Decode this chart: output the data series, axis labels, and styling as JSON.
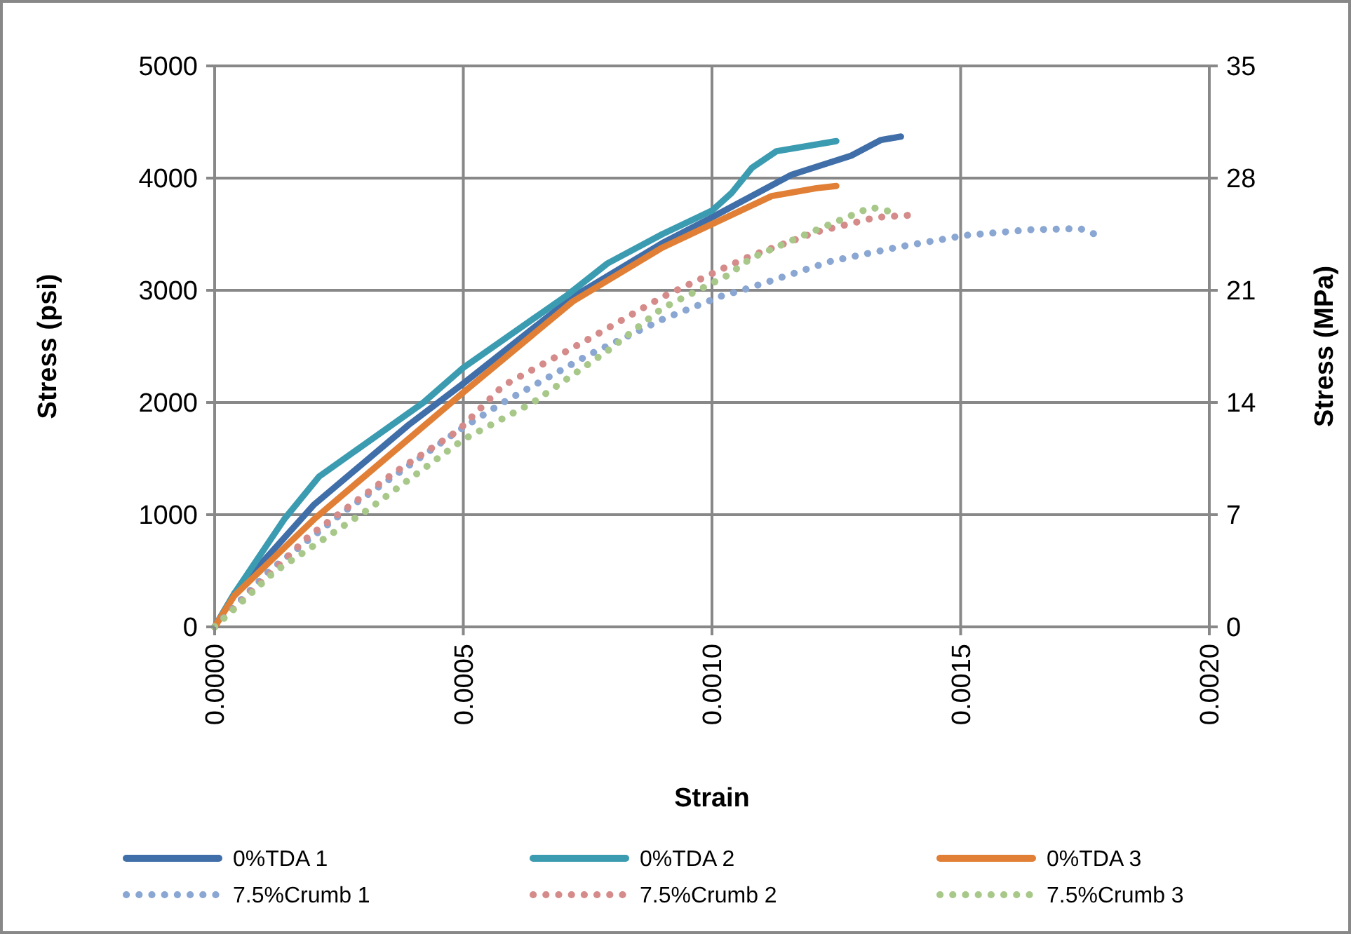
{
  "chart_data": {
    "type": "line",
    "xlabel": "Strain",
    "ylabel": "Stress (psi)",
    "y2label": "Stress (MPa)",
    "xlim": [
      0,
      0.002
    ],
    "xticks": [
      {
        "value": 0,
        "label": "0.0000"
      },
      {
        "value": 0.0005,
        "label": "0.0005"
      },
      {
        "value": 0.001,
        "label": "0.0010"
      },
      {
        "value": 0.0015,
        "label": "0.0015"
      },
      {
        "value": 0.002,
        "label": "0.0020"
      }
    ],
    "ylim": [
      0,
      5000
    ],
    "yticks": [
      0,
      1000,
      2000,
      3000,
      4000,
      5000
    ],
    "y2lim": [
      0,
      35
    ],
    "y2ticks": [
      0,
      7,
      14,
      21,
      28,
      35
    ],
    "grid": true,
    "legend": "bottom",
    "series": [
      {
        "name": "0%TDA 1",
        "color": "#3f6ea8",
        "line_style": "solid",
        "x": [
          0,
          4e-05,
          0.0002,
          0.00039,
          0.0005,
          0.00072,
          0.0009,
          0.001,
          0.00116,
          0.00128,
          0.00134,
          0.00138
        ],
        "values": [
          0,
          300,
          1090,
          1800,
          2170,
          2940,
          3420,
          3650,
          4030,
          4200,
          4340,
          4370
        ]
      },
      {
        "name": "0%TDA 2",
        "color": "#3b9bb0",
        "line_style": "solid",
        "x": [
          0,
          4e-05,
          0.00014,
          0.00021,
          0.00042,
          0.0005,
          0.00071,
          0.00079,
          0.0009,
          0.001,
          0.00104,
          0.00108,
          0.00113,
          0.00125
        ],
        "values": [
          0,
          300,
          960,
          1340,
          2000,
          2310,
          2960,
          3240,
          3500,
          3710,
          3870,
          4090,
          4240,
          4330
        ]
      },
      {
        "name": "0%TDA 3",
        "color": "#e07f35",
        "line_style": "solid",
        "x": [
          0,
          4e-05,
          0.0002,
          0.0005,
          0.00072,
          0.0009,
          0.001,
          0.00112,
          0.00121,
          0.00125
        ],
        "values": [
          0,
          280,
          960,
          2090,
          2900,
          3380,
          3590,
          3840,
          3910,
          3930
        ]
      },
      {
        "name": "7.5%Crumb 1",
        "color": "#8aa6d2",
        "line_style": "dotted",
        "x": [
          0,
          0.00011,
          0.00027,
          0.00049,
          0.00058,
          0.00075,
          0.0009,
          0.00102,
          0.00106,
          0.00124,
          0.00138,
          0.00151,
          0.00164,
          0.00174,
          0.00177
        ],
        "values": [
          0,
          500,
          1060,
          1750,
          2000,
          2420,
          2740,
          2950,
          3000,
          3260,
          3390,
          3490,
          3540,
          3550,
          3500
        ]
      },
      {
        "name": "7.5%Crumb 2",
        "color": "#d48b89",
        "line_style": "dotted",
        "x": [
          0,
          0.00019,
          0.00036,
          0.00049,
          0.00058,
          0.00075,
          0.0009,
          0.00102,
          0.00108,
          0.00121,
          0.00133,
          0.0014
        ],
        "values": [
          0,
          810,
          1370,
          1750,
          2150,
          2560,
          2940,
          3190,
          3310,
          3520,
          3650,
          3670
        ]
      },
      {
        "name": "7.5%Crumb 3",
        "color": "#a8c88a",
        "line_style": "dotted",
        "x": [
          0,
          0.00012,
          0.00031,
          0.0005,
          0.00064,
          0.00079,
          0.0009,
          0.00103,
          0.00108,
          0.0012,
          0.00132,
          0.00136
        ],
        "values": [
          0,
          490,
          1050,
          1670,
          2000,
          2460,
          2840,
          3130,
          3290,
          3520,
          3740,
          3700
        ]
      }
    ]
  }
}
